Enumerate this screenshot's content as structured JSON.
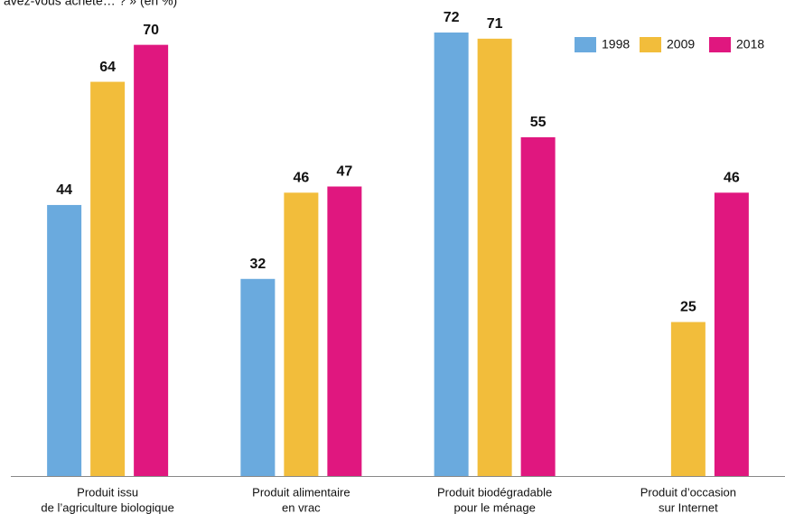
{
  "chart_data": {
    "type": "bar",
    "subtitle": "avez-vous acheté… ? » (en %)",
    "categories": [
      [
        "Produit issu",
        "de l’agriculture biologique"
      ],
      [
        "Produit alimentaire",
        "en vrac"
      ],
      [
        "Produit biodégradable",
        "pour le ménage"
      ],
      [
        "Produit d’occasion",
        "sur Internet"
      ]
    ],
    "series": [
      {
        "name": "1998",
        "color": "#6aaade",
        "values": [
          44,
          32,
          72,
          null
        ]
      },
      {
        "name": "2009",
        "color": "#f2bd3b",
        "values": [
          64,
          46,
          71,
          25
        ]
      },
      {
        "name": "2018",
        "color": "#e0177f",
        "values": [
          70,
          47,
          55,
          46
        ]
      }
    ],
    "ylim": [
      0,
      72
    ],
    "legend": "top-right"
  }
}
